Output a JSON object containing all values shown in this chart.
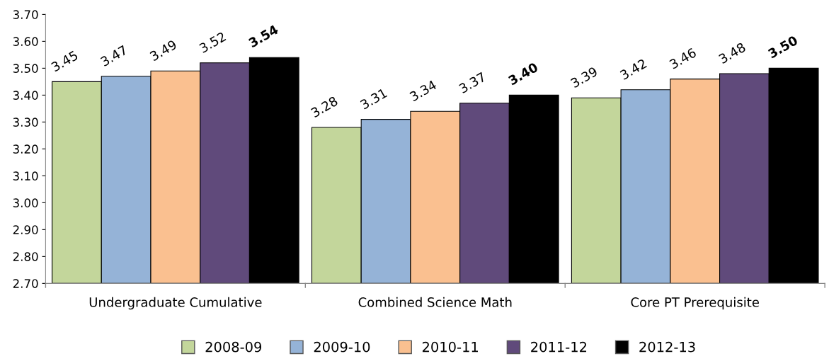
{
  "chart_data": {
    "type": "bar",
    "categories": [
      "Undergraduate Cumulative",
      "Combined Science Math",
      "Core PT Prerequisite"
    ],
    "series": [
      {
        "name": "2008-09",
        "color": "#c3d69b",
        "values": [
          3.45,
          3.28,
          3.39
        ],
        "value_labels": [
          "3.45",
          "3.28",
          "3.39"
        ]
      },
      {
        "name": "2009-10",
        "color": "#95b3d7",
        "values": [
          3.47,
          3.31,
          3.42
        ],
        "value_labels": [
          "3.47",
          "3.31",
          "3.42"
        ]
      },
      {
        "name": "2010-11",
        "color": "#fac090",
        "values": [
          3.49,
          3.34,
          3.46
        ],
        "value_labels": [
          "3.49",
          "3.34",
          "3.46"
        ]
      },
      {
        "name": "2011-12",
        "color": "#604a7b",
        "values": [
          3.52,
          3.37,
          3.48
        ],
        "value_labels": [
          "3.52",
          "3.37",
          "3.48"
        ]
      },
      {
        "name": "2012-13",
        "color": "#000000",
        "values": [
          3.54,
          3.4,
          3.5
        ],
        "value_labels": [
          "3.54",
          "3.40",
          "3.50"
        ]
      }
    ],
    "ylim": [
      2.7,
      3.7
    ],
    "yticks": [
      {
        "value": 2.7,
        "label": "2.70"
      },
      {
        "value": 2.8,
        "label": "2.80"
      },
      {
        "value": 2.9,
        "label": "2.90"
      },
      {
        "value": 3.0,
        "label": "3.00"
      },
      {
        "value": 3.1,
        "label": "3.10"
      },
      {
        "value": 3.2,
        "label": "3.20"
      },
      {
        "value": 3.3,
        "label": "3.30"
      },
      {
        "value": 3.4,
        "label": "3.40"
      },
      {
        "value": 3.5,
        "label": "3.50"
      },
      {
        "value": 3.6,
        "label": "3.60"
      },
      {
        "value": 3.7,
        "label": "3.70"
      }
    ],
    "grid": false,
    "legend": "bottom",
    "marker": "square"
  }
}
